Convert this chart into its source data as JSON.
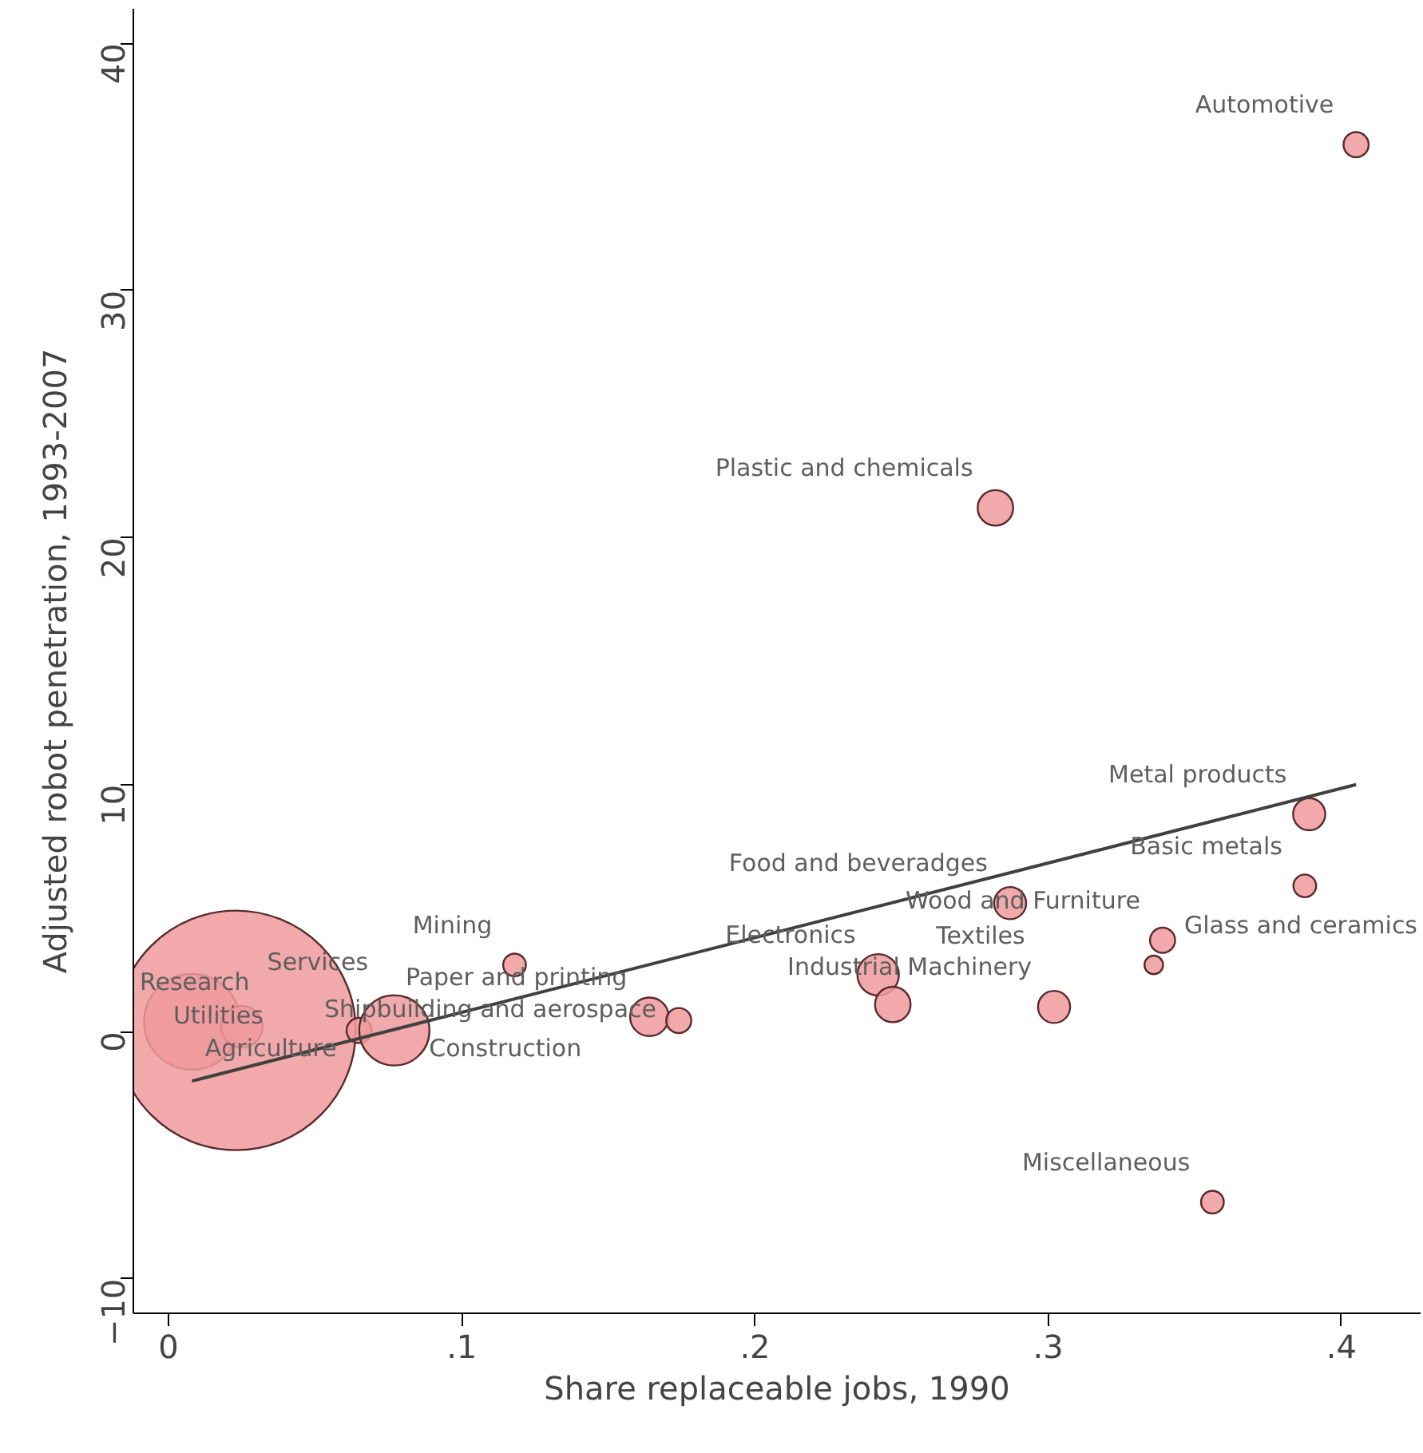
{
  "chart_data": {
    "type": "bubble",
    "xlabel": "Share replaceable jobs, 1990",
    "ylabel": "Adjusted robot penetration, 1993-2007",
    "xlim": [
      -0.012,
      0.427
    ],
    "ylim": [
      -11.4,
      41.4
    ],
    "xticks": [
      {
        "value": 0,
        "label": "0"
      },
      {
        "value": 0.1,
        "label": ".1"
      },
      {
        "value": 0.2,
        "label": ".2"
      },
      {
        "value": 0.3,
        "label": ".3"
      },
      {
        "value": 0.4,
        "label": ".4"
      }
    ],
    "yticks": [
      -10,
      0,
      10,
      20,
      30,
      40
    ],
    "grid": false,
    "series": [
      {
        "color": "#f09a9c",
        "x": [
          0.405,
          0.282,
          0.389,
          0.3875,
          0.287,
          0.339,
          0.336,
          0.356,
          0.242,
          0.302,
          0.247,
          0.118,
          0.164,
          0.174,
          0.008,
          0.025,
          0.023,
          0.065,
          0.077
        ],
        "values": [
          35.9,
          21.2,
          8.8,
          5.9,
          5.2,
          3.7,
          2.7,
          -6.9,
          2.3,
          1.0,
          1.1,
          2.7,
          0.6,
          0.45,
          0.4,
          0.2,
          0.05,
          0.05,
          0.05
        ],
        "sizes": [
          0.011,
          0.022,
          0.018,
          0.009,
          0.018,
          0.011,
          0.006,
          0.009,
          0.03,
          0.018,
          0.022,
          0.009,
          0.026,
          0.011,
          0.16,
          0.03,
          1,
          0.011,
          0.086
        ]
      },
      {
        "type": "line",
        "color": "#404040",
        "x": [
          0.008,
          0.405
        ],
        "values": [
          -2.0,
          10.0
        ]
      }
    ],
    "annotations": [
      {
        "text": "Automotive",
        "x": 0.405,
        "y": 35.9
      },
      {
        "text": "Plastic and chemicals",
        "x": 0.282,
        "y": 21.2
      },
      {
        "text": "Metal products",
        "x": 0.389,
        "y": 8.8
      },
      {
        "text": "Basic metals",
        "x": 0.3875,
        "y": 5.9
      },
      {
        "text": "Food and beveradges",
        "x": 0.287,
        "y": 5.2
      },
      {
        "text": "Wood and Furniture",
        "x": 0.339,
        "y": 3.7
      },
      {
        "text": "Glass and ceramics",
        "x": 0.336,
        "y": 2.7
      },
      {
        "text": "Miscellaneous",
        "x": 0.356,
        "y": -6.9
      },
      {
        "text": "Electronics",
        "x": 0.242,
        "y": 2.3
      },
      {
        "text": "Industrial Machinery",
        "x": 0.302,
        "y": 1.0
      },
      {
        "text": "Textiles",
        "x": 0.247,
        "y": 1.1
      },
      {
        "text": "Mining",
        "x": 0.118,
        "y": 2.7
      },
      {
        "text": "Paper and printing",
        "x": 0.164,
        "y": 0.6
      },
      {
        "text": "Shipbuilding and aerospace",
        "x": 0.174,
        "y": 0.45
      },
      {
        "text": "Research",
        "x": 0.008,
        "y": 0.4
      },
      {
        "text": "Utilities",
        "x": 0.025,
        "y": 0.2
      },
      {
        "text": "Services",
        "x": 0.023,
        "y": 0.05
      },
      {
        "text": "Agriculture",
        "x": 0.065,
        "y": 0.05
      },
      {
        "text": "Construction",
        "x": 0.077,
        "y": 0.05
      }
    ]
  }
}
